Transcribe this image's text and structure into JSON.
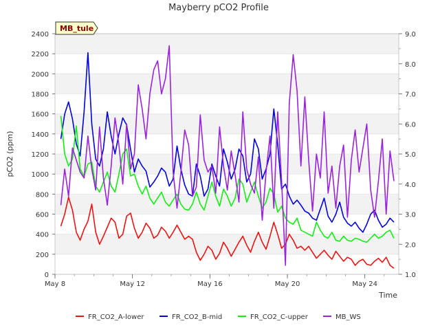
{
  "chart_data": {
    "type": "line",
    "title": "Mayberry pCO2 Profile",
    "site_label": "MB_tule",
    "xlabel": "Time",
    "ylabel": "pCO2 (ppm)",
    "y2label": "",
    "xlim": [
      8.0,
      25.75
    ],
    "ylim": [
      0,
      2400
    ],
    "y2lim": [
      1.0,
      9.0
    ],
    "x_ticks": [
      8,
      12,
      16,
      20,
      24
    ],
    "x_tick_labels": [
      "May 8",
      "May 12",
      "May 16",
      "May 20",
      "May 24"
    ],
    "y_ticks": [
      0,
      200,
      400,
      600,
      800,
      1000,
      1200,
      1400,
      1600,
      1800,
      2000,
      2200,
      2400
    ],
    "y_tick_labels": [
      "0",
      "200",
      "400",
      "600",
      "800",
      "1000",
      "1200",
      "1400",
      "1600",
      "1800",
      "2000",
      "2200",
      "2400"
    ],
    "y2_ticks": [
      1.0,
      2.0,
      3.0,
      4.0,
      5.0,
      6.0,
      7.0,
      8.0,
      9.0
    ],
    "y2_tick_labels": [
      "1.0",
      "2.0",
      "3.0",
      "4.0",
      "5.0",
      "6.0",
      "7.0",
      "8.0",
      "9.0"
    ],
    "series": [
      {
        "name": "FR_CO2_A-lower",
        "color": "#ee1111",
        "axis": "left",
        "x": [
          8.3,
          8.5,
          8.7,
          8.9,
          9.1,
          9.3,
          9.5,
          9.7,
          9.9,
          10.1,
          10.3,
          10.5,
          10.7,
          10.9,
          11.1,
          11.3,
          11.5,
          11.7,
          11.9,
          12.1,
          12.3,
          12.5,
          12.7,
          12.9,
          13.1,
          13.3,
          13.5,
          13.7,
          13.9,
          14.1,
          14.3,
          14.5,
          14.7,
          14.9,
          15.1,
          15.3,
          15.5,
          15.7,
          15.9,
          16.1,
          16.3,
          16.5,
          16.7,
          16.9,
          17.1,
          17.3,
          17.5,
          17.7,
          17.9,
          18.1,
          18.3,
          18.5,
          18.7,
          18.9,
          19.1,
          19.3,
          19.5,
          19.7,
          19.9,
          20.1,
          20.3,
          20.5,
          20.7,
          20.9,
          21.1,
          21.3,
          21.5,
          21.7,
          21.9,
          22.1,
          22.3,
          22.5,
          22.7,
          22.9,
          23.1,
          23.3,
          23.5,
          23.7,
          23.9,
          24.1,
          24.3,
          24.5,
          24.7,
          24.9,
          25.1,
          25.3,
          25.5
        ],
        "values": [
          480,
          600,
          770,
          640,
          420,
          340,
          450,
          530,
          700,
          420,
          300,
          380,
          470,
          560,
          520,
          360,
          400,
          580,
          610,
          460,
          360,
          420,
          510,
          460,
          360,
          390,
          470,
          430,
          360,
          420,
          490,
          420,
          350,
          380,
          350,
          220,
          140,
          200,
          280,
          240,
          150,
          210,
          320,
          260,
          180,
          250,
          320,
          380,
          290,
          220,
          330,
          420,
          320,
          250,
          380,
          520,
          400,
          260,
          300,
          400,
          340,
          260,
          280,
          240,
          280,
          220,
          160,
          200,
          240,
          190,
          150,
          230,
          180,
          130,
          170,
          150,
          90,
          130,
          150,
          100,
          90,
          130,
          160,
          120,
          170,
          90,
          60
        ]
      },
      {
        "name": "FR_CO2_B-mid",
        "color": "#0000dd",
        "axis": "left",
        "x": [
          8.3,
          8.5,
          8.7,
          8.9,
          9.1,
          9.3,
          9.5,
          9.7,
          9.9,
          10.1,
          10.3,
          10.5,
          10.7,
          10.9,
          11.1,
          11.3,
          11.5,
          11.7,
          11.9,
          12.1,
          12.3,
          12.5,
          12.7,
          12.9,
          13.1,
          13.3,
          13.5,
          13.7,
          13.9,
          14.1,
          14.3,
          14.5,
          14.7,
          14.9,
          15.1,
          15.3,
          15.5,
          15.7,
          15.9,
          16.1,
          16.3,
          16.5,
          16.7,
          16.9,
          17.1,
          17.3,
          17.5,
          17.7,
          17.9,
          18.1,
          18.3,
          18.5,
          18.7,
          18.9,
          19.1,
          19.3,
          19.5,
          19.7,
          19.9,
          20.1,
          20.3,
          20.5,
          20.7,
          20.9,
          21.1,
          21.3,
          21.5,
          21.7,
          21.9,
          22.1,
          22.3,
          22.5,
          22.7,
          22.9,
          23.1,
          23.3,
          23.5,
          23.7,
          23.9,
          24.1,
          24.3,
          24.5,
          24.7,
          24.9,
          25.1,
          25.3,
          25.5
        ],
        "values": [
          1350,
          1600,
          1720,
          1550,
          1300,
          1180,
          1620,
          2210,
          1500,
          1150,
          1080,
          1250,
          1620,
          1380,
          1200,
          1400,
          1560,
          1490,
          1250,
          1020,
          1150,
          1080,
          1030,
          870,
          920,
          980,
          1060,
          1020,
          880,
          950,
          1280,
          1050,
          890,
          800,
          780,
          1100,
          980,
          780,
          850,
          1100,
          980,
          880,
          1250,
          1120,
          950,
          1050,
          1250,
          1180,
          920,
          1000,
          1350,
          1250,
          950,
          1050,
          1200,
          1650,
          1300,
          850,
          900,
          780,
          700,
          740,
          690,
          630,
          610,
          560,
          540,
          650,
          760,
          580,
          520,
          600,
          720,
          570,
          510,
          480,
          520,
          460,
          420,
          500,
          600,
          640,
          540,
          470,
          500,
          560,
          520
        ]
      },
      {
        "name": "FR_CO2_C-upper",
        "color": "#11ee11",
        "axis": "left",
        "x": [
          8.3,
          8.5,
          8.7,
          8.9,
          9.1,
          9.3,
          9.5,
          9.7,
          9.9,
          10.1,
          10.3,
          10.5,
          10.7,
          10.9,
          11.1,
          11.3,
          11.5,
          11.7,
          11.9,
          12.1,
          12.3,
          12.5,
          12.7,
          12.9,
          13.1,
          13.3,
          13.5,
          13.7,
          13.9,
          14.1,
          14.3,
          14.5,
          14.7,
          14.9,
          15.1,
          15.3,
          15.5,
          15.7,
          15.9,
          16.1,
          16.3,
          16.5,
          16.7,
          16.9,
          17.1,
          17.3,
          17.5,
          17.7,
          17.9,
          18.1,
          18.3,
          18.5,
          18.7,
          18.9,
          19.1,
          19.3,
          19.5,
          19.7,
          19.9,
          20.1,
          20.3,
          20.5,
          20.7,
          20.9,
          21.1,
          21.3,
          21.5,
          21.7,
          21.9,
          22.1,
          22.3,
          22.5,
          22.7,
          22.9,
          23.1,
          23.3,
          23.5,
          23.7,
          23.9,
          24.1,
          24.3,
          24.5,
          24.7,
          24.9,
          25.1,
          25.3,
          25.5
        ],
        "values": [
          1580,
          1200,
          1080,
          1150,
          1480,
          1050,
          980,
          1100,
          1120,
          880,
          820,
          920,
          1020,
          880,
          820,
          1000,
          1200,
          1250,
          980,
          1000,
          880,
          800,
          880,
          760,
          700,
          760,
          820,
          720,
          680,
          740,
          800,
          700,
          650,
          640,
          700,
          820,
          700,
          640,
          780,
          920,
          780,
          680,
          850,
          780,
          680,
          760,
          950,
          900,
          720,
          820,
          920,
          780,
          660,
          720,
          860,
          800,
          620,
          680,
          560,
          520,
          500,
          560,
          440,
          420,
          400,
          380,
          520,
          440,
          380,
          360,
          420,
          340,
          330,
          380,
          340,
          330,
          360,
          350,
          330,
          320,
          360,
          400,
          360,
          380,
          420,
          440,
          360
        ]
      },
      {
        "name": "MB_WS",
        "color": "#9922dd",
        "axis": "right",
        "x": [
          8.3,
          8.5,
          8.7,
          8.9,
          9.1,
          9.3,
          9.5,
          9.7,
          9.9,
          10.1,
          10.3,
          10.5,
          10.7,
          10.9,
          11.1,
          11.3,
          11.5,
          11.7,
          11.9,
          12.1,
          12.3,
          12.5,
          12.7,
          12.9,
          13.1,
          13.3,
          13.5,
          13.7,
          13.9,
          14.1,
          14.3,
          14.5,
          14.7,
          14.9,
          15.1,
          15.3,
          15.5,
          15.7,
          15.9,
          16.1,
          16.3,
          16.5,
          16.7,
          16.9,
          17.1,
          17.3,
          17.5,
          17.7,
          17.9,
          18.1,
          18.3,
          18.5,
          18.7,
          18.9,
          19.1,
          19.3,
          19.5,
          19.7,
          19.9,
          20.1,
          20.3,
          20.5,
          20.7,
          20.9,
          21.1,
          21.3,
          21.5,
          21.7,
          21.9,
          22.1,
          22.3,
          22.5,
          22.7,
          22.9,
          23.1,
          23.3,
          23.5,
          23.7,
          23.9,
          24.1,
          24.3,
          24.5,
          24.7,
          24.9,
          25.1,
          25.3,
          25.5
        ],
        "values": [
          3.3,
          4.5,
          3.6,
          5.2,
          4.8,
          4.4,
          4.2,
          5.6,
          4.5,
          3.8,
          5.9,
          4.2,
          3.3,
          4.6,
          6.2,
          5.3,
          4.0,
          6.0,
          4.5,
          5.0,
          7.3,
          6.5,
          5.5,
          7.0,
          7.8,
          8.1,
          7.0,
          7.5,
          8.6,
          4.4,
          3.2,
          4.4,
          5.8,
          5.3,
          3.6,
          3.9,
          6.3,
          4.8,
          4.4,
          4.6,
          3.7,
          5.9,
          4.6,
          3.8,
          5.1,
          4.3,
          3.4,
          6.4,
          4.5,
          4.0,
          3.7,
          4.9,
          2.8,
          4.4,
          5.6,
          3.2,
          6.4,
          4.1,
          1.3,
          6.7,
          8.3,
          7.1,
          4.6,
          6.9,
          4.8,
          3.1,
          5.0,
          4.2,
          6.4,
          3.7,
          4.6,
          3.2,
          4.6,
          5.3,
          2.9,
          4.8,
          5.8,
          4.4,
          5.2,
          6.0,
          3.8,
          2.9,
          4.1,
          5.5,
          3.0,
          5.1,
          4.1
        ]
      }
    ]
  }
}
